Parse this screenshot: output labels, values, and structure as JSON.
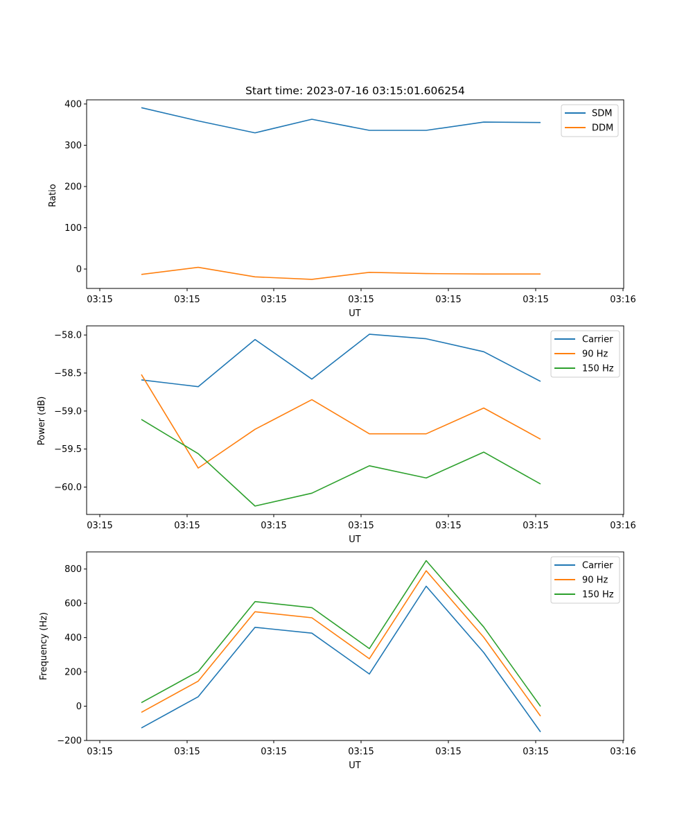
{
  "chart_data": [
    {
      "type": "line",
      "title": "Start time: 2023-07-16 03:15:01.606254",
      "xlabel": "UT",
      "ylabel": "Ratio",
      "xtick_labels": [
        "03:15",
        "03:15",
        "03:15",
        "03:15",
        "03:15",
        "03:15",
        "03:16"
      ],
      "ylim": [
        -47,
        410
      ],
      "yticks": [
        0,
        100,
        200,
        300,
        400
      ],
      "ytick_labels": [
        "0",
        "100",
        "200",
        "300",
        "400"
      ],
      "legend": "top-right",
      "series": [
        {
          "name": "SDM",
          "color": "#1f77b4",
          "values": [
            391,
            359,
            330,
            363,
            336,
            336,
            356,
            355
          ]
        },
        {
          "name": "DDM",
          "color": "#ff7f0e",
          "values": [
            -13,
            4,
            -19,
            -25,
            -8,
            -11,
            -12,
            -12
          ]
        }
      ]
    },
    {
      "type": "line",
      "title": "",
      "xlabel": "UT",
      "ylabel": "Power (dB)",
      "xtick_labels": [
        "03:15",
        "03:15",
        "03:15",
        "03:15",
        "03:15",
        "03:15",
        "03:16"
      ],
      "ylim": [
        -60.36,
        -57.88
      ],
      "yticks": [
        -58.0,
        -58.5,
        -59.0,
        -59.5,
        -60.0
      ],
      "ytick_labels": [
        "−58.0",
        "−58.5",
        "−59.0",
        "−59.5",
        "−60.0"
      ],
      "legend": "top-right",
      "series": [
        {
          "name": "Carrier",
          "color": "#1f77b4",
          "values": [
            -58.59,
            -58.68,
            -58.06,
            -58.58,
            -57.99,
            -58.05,
            -58.22,
            -58.61
          ]
        },
        {
          "name": "90 Hz",
          "color": "#ff7f0e",
          "values": [
            -58.52,
            -59.75,
            -59.24,
            -58.85,
            -59.3,
            -59.3,
            -58.96,
            -59.37
          ]
        },
        {
          "name": "150 Hz",
          "color": "#2ca02c",
          "values": [
            -59.11,
            -59.56,
            -60.25,
            -60.08,
            -59.72,
            -59.88,
            -59.54,
            -59.96
          ]
        }
      ]
    },
    {
      "type": "line",
      "title": "",
      "xlabel": "UT",
      "ylabel": "Frequency (Hz)",
      "xtick_labels": [
        "03:15",
        "03:15",
        "03:15",
        "03:15",
        "03:15",
        "03:15",
        "03:16"
      ],
      "ylim": [
        -200,
        900
      ],
      "yticks": [
        -200,
        0,
        200,
        400,
        600,
        800
      ],
      "ytick_labels": [
        "−200",
        "0",
        "200",
        "400",
        "600",
        "800"
      ],
      "legend": "top-right",
      "series": [
        {
          "name": "Carrier",
          "color": "#1f77b4",
          "values": [
            -127,
            55,
            460,
            426,
            188,
            700,
            313,
            -150
          ]
        },
        {
          "name": "90 Hz",
          "color": "#ff7f0e",
          "values": [
            -36,
            146,
            551,
            516,
            277,
            790,
            402,
            -58
          ]
        },
        {
          "name": "150 Hz",
          "color": "#2ca02c",
          "values": [
            21,
            202,
            610,
            575,
            336,
            849,
            462,
            -1
          ]
        }
      ]
    }
  ]
}
